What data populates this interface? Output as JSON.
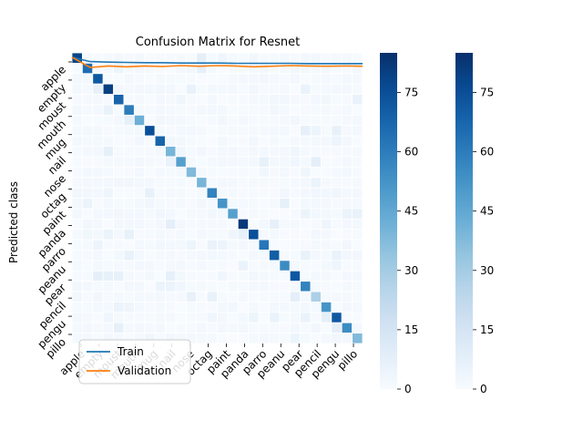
{
  "chart_data": {
    "type": "heatmap",
    "title": "Confusion Matrix for Resnet",
    "ylabel": "Predicted class",
    "xlabel": "",
    "categories": [
      "apple",
      "empty",
      "moust",
      "mouth",
      "mug",
      "nail",
      "nose",
      "octag",
      "paint",
      "panda",
      "parro",
      "peanu",
      "pear",
      "pencil",
      "pengu",
      "pillo"
    ],
    "diagonal_values": [
      78,
      65,
      72,
      80,
      68,
      60,
      42,
      75,
      68,
      40,
      48,
      38,
      40,
      58,
      52,
      48,
      82,
      75,
      62,
      70,
      55,
      72,
      58,
      28,
      52,
      72,
      55,
      38
    ],
    "color_range": [
      0,
      85
    ],
    "colorbar_ticks": [
      0,
      15,
      30,
      45,
      60,
      75
    ],
    "colorbars": 2,
    "lines": {
      "legend_position": "lower-left",
      "series": [
        {
          "name": "Train",
          "color": "#1f77b4",
          "y": [
            0.985,
            0.97,
            0.968,
            0.967,
            0.966,
            0.966,
            0.965,
            0.965,
            0.965,
            0.964,
            0.964,
            0.964,
            0.964,
            0.963,
            0.963,
            0.963,
            0.963
          ]
        },
        {
          "name": "Validation",
          "color": "#ff7f0e",
          "y": [
            0.985,
            0.95,
            0.955,
            0.952,
            0.955,
            0.953,
            0.956,
            0.954,
            0.956,
            0.955,
            0.952,
            0.954,
            0.956,
            0.955,
            0.954,
            0.955,
            0.954
          ]
        }
      ]
    }
  }
}
